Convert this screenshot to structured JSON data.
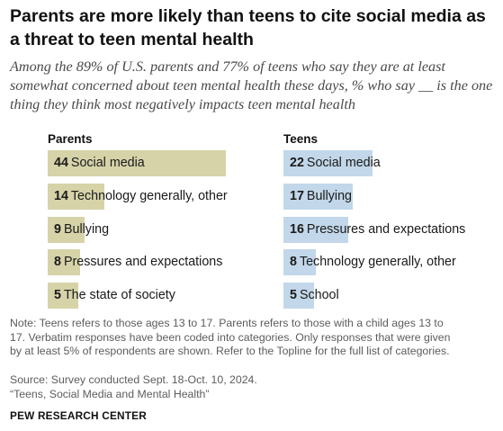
{
  "title": "Parents are more likely than teens to cite social media as a threat to teen mental health",
  "subtitle": "Among the 89% of U.S. parents and 77% of teens who say they are at least somewhat concerned about teen mental health these days, % who say __ is the one thing they think most negatively impacts teen mental health",
  "chart_data": [
    {
      "type": "bar",
      "orientation": "horizontal",
      "title": "Parents",
      "categories": [
        "Social media",
        "Technology generally, other",
        "Bullying",
        "Pressures and expectations",
        "The state of society"
      ],
      "values": [
        44,
        14,
        9,
        8,
        5
      ],
      "color": "#d6d3a9",
      "xlim": [
        0,
        44
      ]
    },
    {
      "type": "bar",
      "orientation": "horizontal",
      "title": "Teens",
      "categories": [
        "Social media",
        "Bullying",
        "Pressures and expectations",
        "Technology generally, other",
        "School"
      ],
      "values": [
        22,
        17,
        16,
        8,
        5
      ],
      "color": "#c2d7e9",
      "xlim": [
        0,
        44
      ]
    }
  ],
  "note_lines": [
    "Note: Teens refers to those ages 13 to 17. Parents refers to those with a child ages 13 to",
    "17. Verbatim responses have been coded into categories. Only responses that were given",
    "by at least 5% of respondents are shown. Refer to the Topline for the full list of categories."
  ],
  "source": "Source: Survey conducted Sept. 18-Oct. 10, 2024.",
  "report": "“Teens, Social Media and Mental Health”",
  "brand": "PEW RESEARCH CENTER"
}
